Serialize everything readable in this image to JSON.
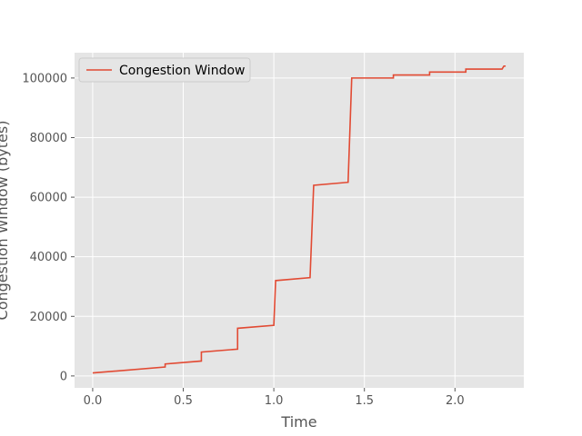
{
  "chart_data": {
    "type": "line",
    "title": "",
    "xlabel": "Time",
    "ylabel": "Congestion Window (bytes)",
    "xlim": [
      -0.1,
      2.38
    ],
    "ylim": [
      -4000,
      108500
    ],
    "xticks": [
      0.0,
      0.5,
      1.0,
      1.5,
      2.0
    ],
    "xtick_labels": [
      "0.0",
      "0.5",
      "1.0",
      "1.5",
      "2.0"
    ],
    "yticks": [
      0,
      20000,
      40000,
      60000,
      80000,
      100000
    ],
    "ytick_labels": [
      "0",
      "20000",
      "40000",
      "60000",
      "80000",
      "100000"
    ],
    "grid": true,
    "legend_position": "top-left",
    "colors": {
      "background": "#e5e5e5",
      "grid": "#ffffff",
      "line": "#e24a33"
    },
    "series": [
      {
        "name": "Congestion Window",
        "x": [
          0.0,
          0.4,
          0.4,
          0.6,
          0.6,
          0.8,
          0.8,
          1.0,
          1.01,
          1.2,
          1.22,
          1.41,
          1.43,
          1.66,
          1.66,
          1.86,
          1.86,
          2.06,
          2.06,
          2.26,
          2.27,
          2.28
        ],
        "y": [
          1000,
          3000,
          4000,
          5000,
          8000,
          9000,
          16000,
          17000,
          32000,
          33000,
          64000,
          65000,
          100000,
          100000,
          101000,
          101000,
          102000,
          102000,
          103000,
          103000,
          104000,
          104000
        ]
      }
    ]
  }
}
